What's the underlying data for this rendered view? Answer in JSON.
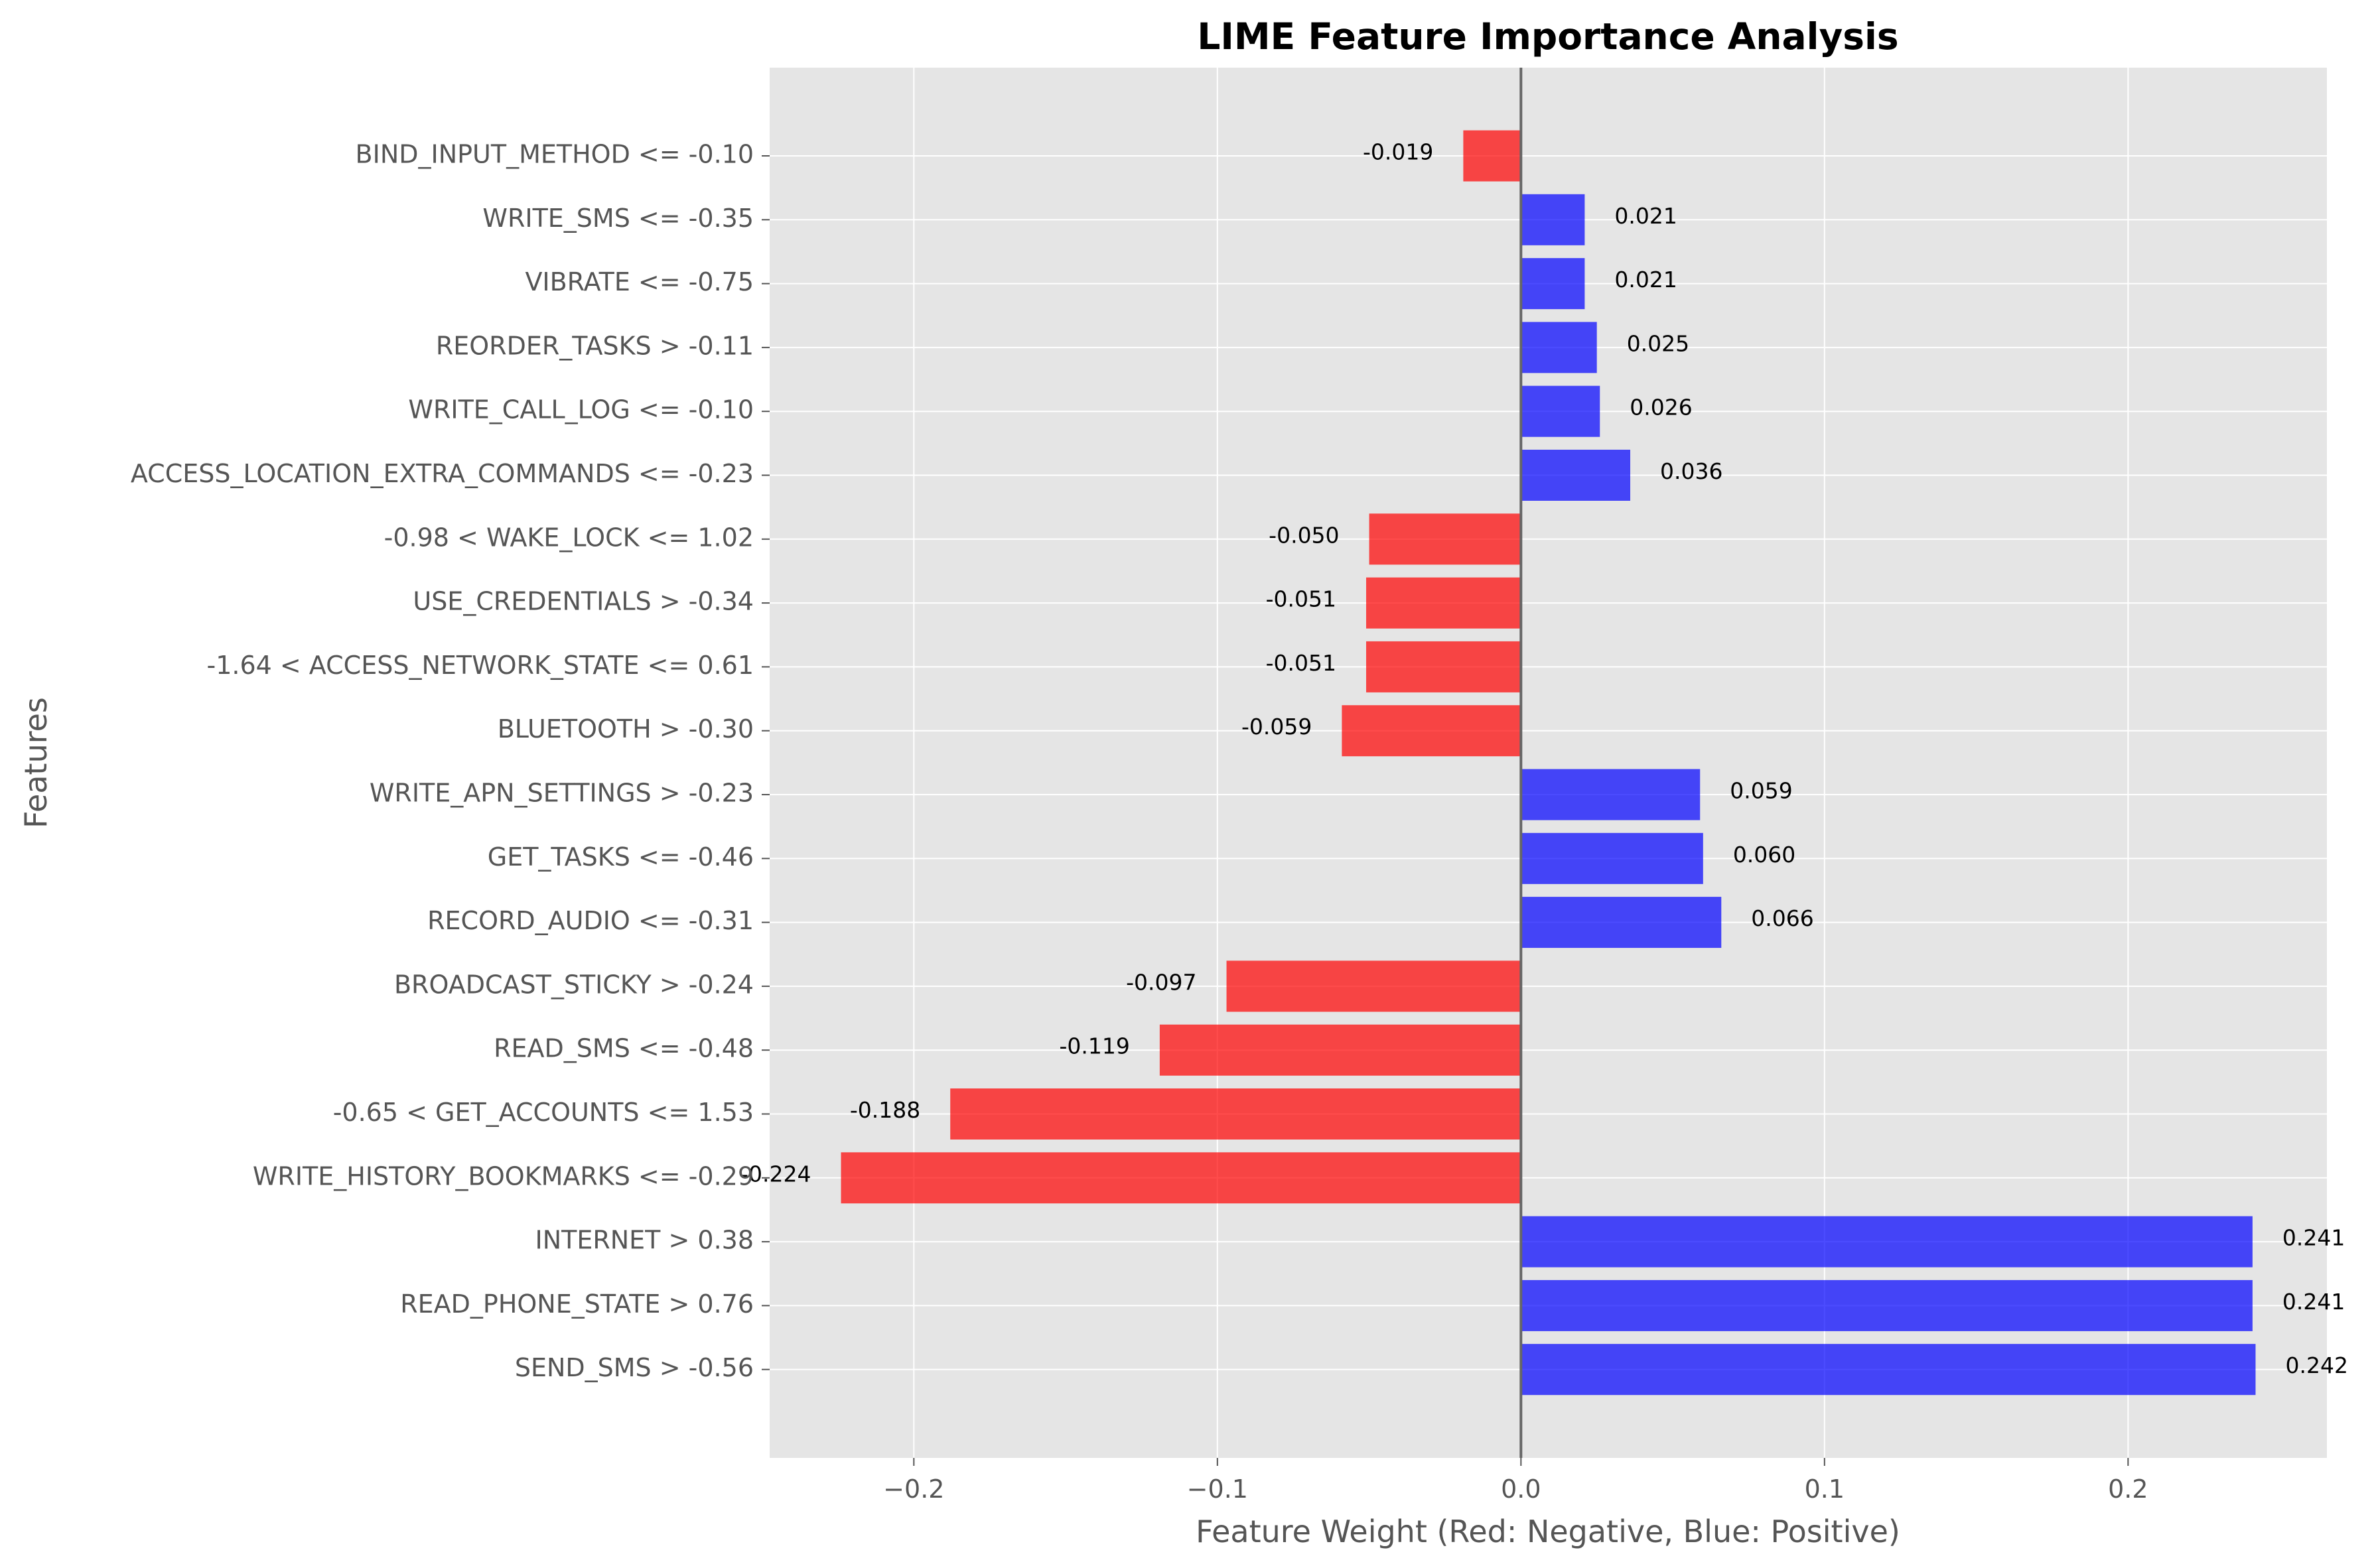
{
  "chart_data": {
    "type": "bar",
    "orientation": "horizontal",
    "title": "LIME Feature Importance Analysis",
    "xlabel": "Feature Weight (Red: Negative, Blue: Positive)",
    "ylabel": "Features",
    "xlim": [
      -0.2475,
      0.2655
    ],
    "xticks": [
      -0.2,
      -0.1,
      0.0,
      0.1,
      0.2
    ],
    "xtick_labels": [
      "−0.2",
      "−0.1",
      "0.0",
      "0.1",
      "0.2"
    ],
    "grid": true,
    "zero_line": true,
    "colors": {
      "negative": "#ff0000",
      "positive": "#0000ff",
      "background": "#e5e5e5",
      "grid": "#ffffff",
      "zero_line": "#666666"
    },
    "bar_opacity": 0.7,
    "features": [
      {
        "label": "BIND_INPUT_METHOD <= -0.10",
        "value": -0.019,
        "value_label": "-0.019"
      },
      {
        "label": "WRITE_SMS <= -0.35",
        "value": 0.021,
        "value_label": "0.021"
      },
      {
        "label": "VIBRATE <= -0.75",
        "value": 0.021,
        "value_label": "0.021"
      },
      {
        "label": "REORDER_TASKS > -0.11",
        "value": 0.025,
        "value_label": "0.025"
      },
      {
        "label": "WRITE_CALL_LOG <= -0.10",
        "value": 0.026,
        "value_label": "0.026"
      },
      {
        "label": "ACCESS_LOCATION_EXTRA_COMMANDS <= -0.23",
        "value": 0.036,
        "value_label": "0.036"
      },
      {
        "label": "-0.98 < WAKE_LOCK <= 1.02",
        "value": -0.05,
        "value_label": "-0.050"
      },
      {
        "label": "USE_CREDENTIALS > -0.34",
        "value": -0.051,
        "value_label": "-0.051"
      },
      {
        "label": "-1.64 < ACCESS_NETWORK_STATE <= 0.61",
        "value": -0.051,
        "value_label": "-0.051"
      },
      {
        "label": "BLUETOOTH > -0.30",
        "value": -0.059,
        "value_label": "-0.059"
      },
      {
        "label": "WRITE_APN_SETTINGS > -0.23",
        "value": 0.059,
        "value_label": "0.059"
      },
      {
        "label": "GET_TASKS <= -0.46",
        "value": 0.06,
        "value_label": "0.060"
      },
      {
        "label": "RECORD_AUDIO <= -0.31",
        "value": 0.066,
        "value_label": "0.066"
      },
      {
        "label": "BROADCAST_STICKY > -0.24",
        "value": -0.097,
        "value_label": "-0.097"
      },
      {
        "label": "READ_SMS <= -0.48",
        "value": -0.119,
        "value_label": "-0.119"
      },
      {
        "label": "-0.65 < GET_ACCOUNTS <= 1.53",
        "value": -0.188,
        "value_label": "-0.188"
      },
      {
        "label": "WRITE_HISTORY_BOOKMARKS <= -0.29",
        "value": -0.224,
        "value_label": "-0.224"
      },
      {
        "label": "INTERNET > 0.38",
        "value": 0.241,
        "value_label": "0.241"
      },
      {
        "label": "READ_PHONE_STATE > 0.76",
        "value": 0.241,
        "value_label": "0.241"
      },
      {
        "label": "SEND_SMS > -0.56",
        "value": 0.242,
        "value_label": "0.242"
      }
    ]
  }
}
